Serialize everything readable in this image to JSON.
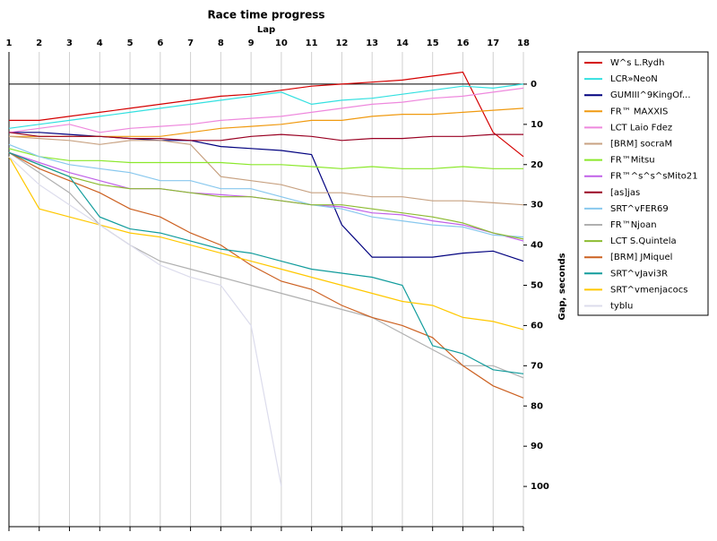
{
  "chart_data": {
    "type": "line",
    "title": "Race time progress",
    "x_label": "Lap",
    "y_label": "Gap, seconds",
    "x": [
      1,
      2,
      3,
      4,
      5,
      6,
      7,
      8,
      9,
      10,
      11,
      12,
      13,
      14,
      15,
      16,
      17,
      18
    ],
    "xlim": [
      1,
      18
    ],
    "xticks": [
      1,
      2,
      3,
      4,
      5,
      6,
      7,
      8,
      9,
      10,
      11,
      12,
      13,
      14,
      15,
      16,
      17,
      18
    ],
    "ylim": [
      -8,
      110
    ],
    "yticks": [
      0,
      10,
      20,
      30,
      40,
      50,
      60,
      70,
      80,
      90,
      100
    ],
    "y_inverted": true,
    "grid": true,
    "legend": "right",
    "series": [
      {
        "name": "W^s L.Rydh",
        "color": "#d40000",
        "values": [
          9,
          9,
          8,
          7,
          6,
          5,
          4,
          3,
          2.5,
          1.5,
          0.5,
          0,
          -0.5,
          -1,
          -2,
          -3,
          12,
          18
        ]
      },
      {
        "name": "LCR»NeoN",
        "color": "#33e0e0",
        "values": [
          11,
          10,
          9,
          8,
          7,
          6,
          5,
          4,
          3,
          2,
          5,
          4,
          3.5,
          2.5,
          1.5,
          0.5,
          1,
          0
        ]
      },
      {
        "name": "GUMIII^9KingOf...",
        "color": "#00007f",
        "values": [
          12,
          12,
          12.5,
          13,
          13.5,
          14,
          14,
          15.5,
          16,
          16.5,
          17.5,
          35,
          43,
          43,
          43,
          42,
          41.5,
          44
        ]
      },
      {
        "name": "FR™ MAXXIS",
        "color": "#f09a10",
        "values": [
          13,
          13,
          13,
          13,
          13,
          13,
          12,
          11,
          10.5,
          10,
          9,
          9,
          8,
          7.5,
          7.5,
          7,
          6.5,
          6
        ]
      },
      {
        "name": "LCT Laio Fdez",
        "color": "#ee88dd",
        "values": [
          12,
          11,
          10,
          12,
          11,
          10.5,
          10,
          9,
          8.5,
          8,
          7,
          6,
          5,
          4.5,
          3.5,
          3,
          2,
          1
        ]
      },
      {
        "name": "[BRM] socraM",
        "color": "#c8a282",
        "values": [
          13,
          13.5,
          14,
          15,
          14,
          14,
          15,
          23,
          24,
          25,
          27,
          27,
          28,
          28,
          29,
          29,
          29.5,
          30
        ]
      },
      {
        "name": "FR™Mitsu",
        "color": "#8ae82a",
        "values": [
          16,
          18,
          19,
          19,
          19.5,
          19.5,
          19.5,
          19.5,
          20,
          20,
          20.5,
          21,
          20.5,
          21,
          21,
          20.5,
          21,
          21
        ]
      },
      {
        "name": "FR™^s^s^sMito21",
        "color": "#c060e8",
        "values": [
          17,
          19.5,
          22,
          24,
          26,
          26,
          27,
          27.5,
          28,
          29,
          30,
          30.5,
          32,
          32.5,
          34,
          35,
          37,
          39
        ]
      },
      {
        "name": "[as]jas",
        "color": "#990022",
        "values": [
          12,
          13,
          13,
          13,
          13.5,
          13.5,
          14,
          14,
          13,
          12.5,
          13,
          14,
          13.5,
          13.5,
          13,
          13,
          12.5,
          12.5
        ]
      },
      {
        "name": "SRT^vFER69",
        "color": "#88c8ee",
        "values": [
          15,
          18,
          20,
          21,
          22,
          24,
          24,
          26,
          26,
          28,
          30,
          31,
          33,
          34,
          35,
          35.5,
          37.5,
          38
        ]
      },
      {
        "name": "FR™Njoan",
        "color": "#b0b0b0",
        "values": [
          17,
          22,
          27,
          35,
          40,
          44,
          46,
          48,
          50,
          52,
          54,
          56,
          58,
          62,
          66,
          70,
          70,
          73
        ]
      },
      {
        "name": "LCT S.Quintela",
        "color": "#8cbb30",
        "values": [
          17,
          20,
          23,
          25,
          26,
          26,
          27,
          28,
          28,
          29,
          30,
          30,
          31,
          32,
          33,
          34.5,
          37,
          38.5
        ]
      },
      {
        "name": "[BRM] JMiquel",
        "color": "#cc6020",
        "values": [
          17,
          21,
          24,
          27,
          31,
          33,
          37,
          40,
          45,
          49,
          51,
          55,
          58,
          60,
          63,
          70,
          75,
          78
        ]
      },
      {
        "name": "SRT^vJavi3R",
        "color": "#119c9c",
        "values": [
          17,
          20,
          23,
          33,
          36,
          37,
          39,
          41,
          42,
          44,
          46,
          47,
          48,
          50,
          65,
          67,
          71,
          72
        ]
      },
      {
        "name": "SRT^vmenjacocs",
        "color": "#ffc800",
        "values": [
          18,
          31,
          33,
          35,
          37,
          38,
          40,
          42,
          44,
          46,
          48,
          50,
          52,
          54,
          55,
          58,
          59,
          61
        ]
      },
      {
        "name": "tyblu",
        "color": "#dcdcec",
        "values": [
          18,
          25,
          30,
          35,
          40,
          45,
          48,
          50,
          60,
          100,
          null,
          null,
          null,
          null,
          null,
          null,
          null,
          null
        ]
      }
    ]
  }
}
